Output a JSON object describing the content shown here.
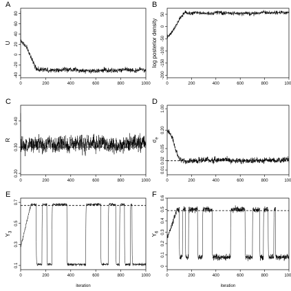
{
  "chart_data": [
    {
      "panel": "A",
      "type": "line",
      "ylabel": "U",
      "xlabel": "",
      "xlim": [
        0,
        1000
      ],
      "ylim": [
        -45,
        90
      ],
      "xticks": [
        0,
        200,
        400,
        600,
        800,
        1000
      ],
      "yticks": [
        -40,
        -20,
        0,
        20,
        40,
        60,
        80
      ],
      "reference_line": null,
      "trace": {
        "initial_spike": 85,
        "start": 25,
        "equilibrium": -30,
        "burn_in": 150,
        "noise": 4,
        "drift": 3
      }
    },
    {
      "panel": "B",
      "type": "line",
      "ylabel": "log posterior density",
      "xlabel": "",
      "xlim": [
        0,
        1000
      ],
      "ylim": [
        -210,
        75
      ],
      "xticks": [
        0,
        200,
        400,
        600,
        800,
        1000
      ],
      "yticks": [
        -200,
        -150,
        -100,
        -50,
        0,
        50
      ],
      "reference_line": null,
      "trace": {
        "initial_spike": -200,
        "start": -40,
        "equilibrium": 55,
        "burn_in": 150,
        "noise": 7,
        "drift": 4
      }
    },
    {
      "panel": "C",
      "type": "line",
      "ylabel": "R",
      "xlabel": "",
      "xlim": [
        0,
        1000
      ],
      "ylim": [
        0.195,
        0.46
      ],
      "xticks": [
        0,
        200,
        400,
        600,
        800,
        1000
      ],
      "yticks": [
        0.2,
        0.3,
        0.4
      ],
      "ytick_labels": [
        "0.20",
        "0.30",
        "0.40"
      ],
      "reference_line": 0.3,
      "trace": {
        "initial_spike": 0.43,
        "start": 0.31,
        "equilibrium": 0.31,
        "burn_in": 5,
        "noise": 0.03,
        "drift": 0.01
      }
    },
    {
      "panel": "D",
      "type": "line",
      "ylabel": "σ",
      "ylabel_sub": "e",
      "xlabel": "",
      "xlim": [
        0,
        1000
      ],
      "ylim": [
        0.007,
        1.3
      ],
      "yscale": "log",
      "xticks": [
        0,
        200,
        400,
        600,
        800,
        1000
      ],
      "yticks": [
        0.01,
        0.02,
        0.05,
        0.2,
        1.0
      ],
      "ytick_labels": [
        "0.01",
        "0.02",
        "0.05",
        "0.20",
        "1.00"
      ],
      "reference_line": 0.02,
      "trace": {
        "initial_spike": 0.9,
        "start": 0.2,
        "equilibrium": 0.02,
        "burn_in": 120,
        "noise": 0.004,
        "drift": 0.003
      }
    },
    {
      "panel": "E",
      "type": "line",
      "ylabel": "Y",
      "ylabel_sub": "3",
      "xlabel": "iteration",
      "xlim": [
        0,
        1000
      ],
      "ylim": [
        0.06,
        0.74
      ],
      "xticks": [
        0,
        200,
        400,
        600,
        800,
        1000
      ],
      "yticks": [
        0.1,
        0.3,
        0.5,
        0.7
      ],
      "reference_line": 0.67,
      "trace": {
        "start": 0.28,
        "high": 0.68,
        "low": 0.11,
        "noise": 0.02,
        "low_intervals": [
          [
            125,
            170
          ],
          [
            210,
            250
          ],
          [
            370,
            520
          ],
          [
            640,
            700
          ],
          [
            760,
            790
          ],
          [
            830,
            875
          ],
          [
            890,
            1000
          ]
        ]
      }
    },
    {
      "panel": "F",
      "type": "line",
      "ylabel": "Y",
      "ylabel_sub": "6",
      "xlabel": "iteration",
      "xlim": [
        0,
        1000
      ],
      "ylim": [
        -0.03,
        0.6
      ],
      "xticks": [
        0,
        200,
        400,
        600,
        800,
        1000
      ],
      "yticks": [
        0.0,
        0.1,
        0.2,
        0.3,
        0.4,
        0.5,
        0.6
      ],
      "reference_line": 0.49,
      "trace": {
        "start": 0.25,
        "high": 0.5,
        "low": 0.08,
        "noise": 0.04,
        "low_intervals": [
          [
            100,
            125
          ],
          [
            150,
            175
          ],
          [
            250,
            290
          ],
          [
            370,
            520
          ],
          [
            640,
            700
          ],
          [
            760,
            790
          ],
          [
            830,
            875
          ],
          [
            890,
            1000
          ]
        ]
      }
    }
  ]
}
